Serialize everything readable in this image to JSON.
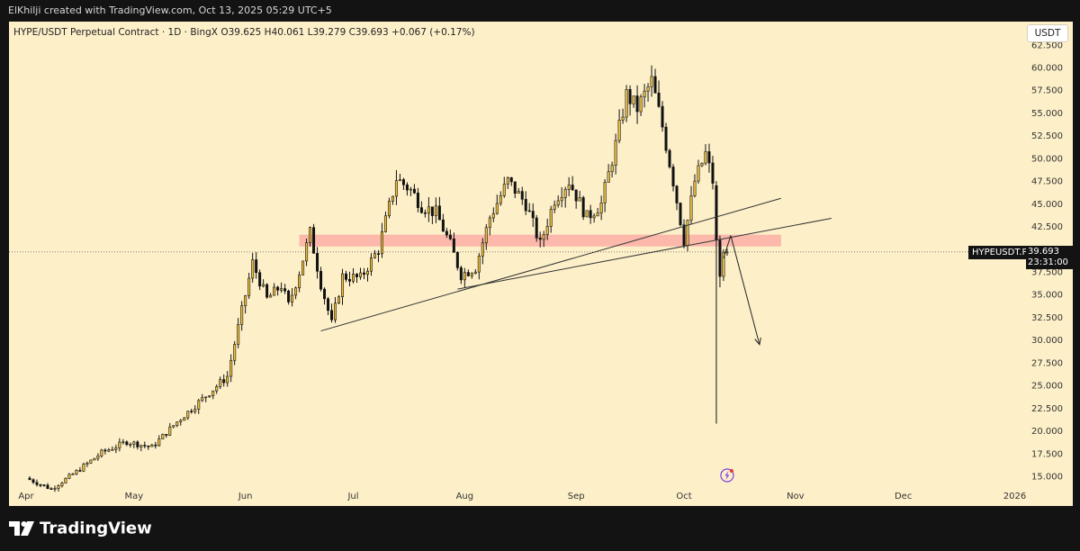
{
  "header": {
    "credit": "ElKhilji created with TradingView.com, Oct 13, 2025 05:29 UTC+5"
  },
  "symbol_bar": {
    "name": "HYPE/USDT Perpetual Contract",
    "interval": "1D",
    "exchange": "BingX",
    "open": "O39.625",
    "high": "H40.061",
    "low": "L39.279",
    "close": "C39.693",
    "change": "+0.067 (+0.17%)",
    "sep": "·"
  },
  "currency_button": "USDT",
  "price_badge": {
    "symbol": "HYPEUSDT.P",
    "price": "39.693",
    "countdown": "23:31:00"
  },
  "footer": {
    "brand": "TradingView"
  },
  "colors": {
    "background": "#fdf0c9",
    "candle_up": "#f0c040",
    "candle_down": "#111111",
    "zone": "#f9a5a0",
    "trendline": "#333333"
  },
  "chart_data": {
    "type": "candlestick",
    "symbol": "HYPE/USDT Perpetual Contract",
    "y_axis": {
      "ticks": [
        "62.500",
        "60.000",
        "57.500",
        "55.000",
        "52.500",
        "50.000",
        "47.500",
        "45.000",
        "42.500",
        "40.000",
        "37.500",
        "35.000",
        "32.500",
        "30.000",
        "27.500",
        "25.000",
        "22.500",
        "20.000",
        "17.500",
        "15.000"
      ],
      "ylim": [
        13.5,
        63.5
      ]
    },
    "x_axis": {
      "ticks": [
        "Apr",
        "May",
        "Jun",
        "Jul",
        "Aug",
        "Sep",
        "Oct",
        "Nov",
        "Dec",
        "2026"
      ]
    },
    "last_price": 39.693,
    "resistance_zone": {
      "low": 40.3,
      "high": 41.6
    },
    "trendlines": [
      {
        "from": {
          "date": "2025-06-22",
          "price": 31.0
        },
        "to": {
          "date": "2025-10-28",
          "price": 45.6
        }
      },
      {
        "from": {
          "date": "2025-07-30",
          "price": 35.6
        },
        "to": {
          "date": "2025-11-11",
          "price": 43.4
        }
      }
    ],
    "projection_arrow": {
      "from": {
        "date": "2025-10-14",
        "price": 41.5
      },
      "to": {
        "date": "2025-10-22",
        "price": 29.5
      }
    },
    "price_path": [
      [
        "2025-04-01",
        14.8
      ],
      [
        "2025-04-08",
        13.6
      ],
      [
        "2025-04-15",
        15.5
      ],
      [
        "2025-04-22",
        17.6
      ],
      [
        "2025-04-29",
        18.8
      ],
      [
        "2025-05-06",
        18.2
      ],
      [
        "2025-05-13",
        21.0
      ],
      [
        "2025-05-20",
        23.5
      ],
      [
        "2025-05-27",
        26.0
      ],
      [
        "2025-05-31",
        33.2
      ],
      [
        "2025-06-03",
        38.5
      ],
      [
        "2025-06-07",
        34.5
      ],
      [
        "2025-06-11",
        36.0
      ],
      [
        "2025-06-13",
        33.8
      ],
      [
        "2025-06-16",
        37.5
      ],
      [
        "2025-06-19",
        41.8
      ],
      [
        "2025-06-22",
        36.2
      ],
      [
        "2025-06-25",
        31.8
      ],
      [
        "2025-06-28",
        37.0
      ],
      [
        "2025-07-03",
        36.8
      ],
      [
        "2025-07-08",
        40.0
      ],
      [
        "2025-07-13",
        47.8
      ],
      [
        "2025-07-17",
        46.5
      ],
      [
        "2025-07-20",
        44.8
      ],
      [
        "2025-07-24",
        44.0
      ],
      [
        "2025-07-28",
        40.5
      ],
      [
        "2025-07-31",
        37.2
      ],
      [
        "2025-08-04",
        38.0
      ],
      [
        "2025-08-08",
        43.5
      ],
      [
        "2025-08-13",
        47.5
      ],
      [
        "2025-08-18",
        45.0
      ],
      [
        "2025-08-22",
        40.5
      ],
      [
        "2025-08-26",
        45.5
      ],
      [
        "2025-08-30",
        47.5
      ],
      [
        "2025-09-04",
        43.5
      ],
      [
        "2025-09-08",
        45.0
      ],
      [
        "2025-09-12",
        51.5
      ],
      [
        "2025-09-15",
        57.0
      ],
      [
        "2025-09-18",
        55.5
      ],
      [
        "2025-09-22",
        58.5
      ],
      [
        "2025-09-25",
        53.5
      ],
      [
        "2025-09-28",
        47.5
      ],
      [
        "2025-10-01",
        41.0
      ],
      [
        "2025-10-04",
        47.5
      ],
      [
        "2025-10-07",
        50.5
      ],
      [
        "2025-10-10",
        46.0
      ],
      [
        "2025-10-11",
        38.0
      ],
      [
        "2025-10-12",
        37.5
      ],
      [
        "2025-10-13",
        39.7
      ]
    ]
  }
}
